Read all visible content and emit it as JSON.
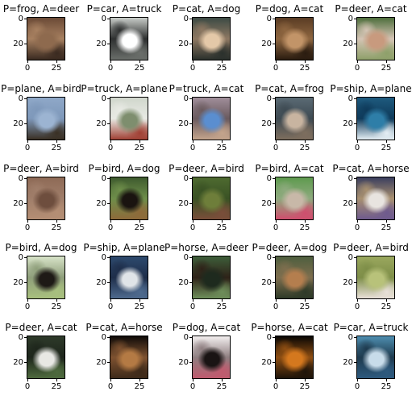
{
  "figure": {
    "columns": 5,
    "tick_labels": {
      "x": [
        "0",
        "25"
      ],
      "y": [
        "0",
        "20"
      ]
    },
    "panels": [
      {
        "title": "P=frog, A=deer",
        "scene": "deer-brown",
        "colors": [
          "#6b4a36",
          "#8e6a4e",
          "#3a2a20",
          "#a78060"
        ]
      },
      {
        "title": "P=car, A=truck",
        "scene": "truck-grey",
        "colors": [
          "#c8ccc8",
          "#ffffff",
          "#6a6e6a",
          "#2e3030"
        ]
      },
      {
        "title": "P=cat, A=dog",
        "scene": "dog-dark",
        "colors": [
          "#3c4a44",
          "#e4c8a8",
          "#2a302c",
          "#8e7862"
        ]
      },
      {
        "title": "P=dog, A=cat",
        "scene": "cat-brown",
        "colors": [
          "#5a3c24",
          "#c29468",
          "#2a1c10",
          "#8e6640"
        ]
      },
      {
        "title": "P=deer, A=cat",
        "scene": "cat-garden",
        "colors": [
          "#4e6e3c",
          "#c89a7e",
          "#8ea06a",
          "#d4c4b4"
        ]
      },
      {
        "title": "P=plane, A=bird",
        "scene": "bird-sky",
        "colors": [
          "#8fa8c8",
          "#9cb4d2",
          "#3a3024",
          "#7e98ba"
        ]
      },
      {
        "title": "P=truck, A=plane",
        "scene": "plane-ground",
        "colors": [
          "#d0d6cc",
          "#7e8e6e",
          "#a04034",
          "#e8eae4"
        ]
      },
      {
        "title": "P=truck, A=cat",
        "scene": "cat-screen",
        "colors": [
          "#a08e9a",
          "#5a8ed0",
          "#c4a48c",
          "#6a5a5e"
        ]
      },
      {
        "title": "P=cat, A=frog",
        "scene": "frog-rock",
        "colors": [
          "#5a6a74",
          "#c8b4a0",
          "#7e6e5e",
          "#3e4a52"
        ]
      },
      {
        "title": "P=ship, A=plane",
        "scene": "plane-water",
        "colors": [
          "#1e5a7e",
          "#2e7ea8",
          "#e4eef4",
          "#0e3a5a"
        ]
      },
      {
        "title": "P=deer, A=bird",
        "scene": "bird-brown",
        "colors": [
          "#8e6a56",
          "#6e4e3e",
          "#b48e74",
          "#a07e6a"
        ]
      },
      {
        "title": "P=bird, A=dog",
        "scene": "dog-black",
        "colors": [
          "#3e5a2e",
          "#1a1410",
          "#8e6a3a",
          "#6e8e4a"
        ]
      },
      {
        "title": "P=deer, A=bird",
        "scene": "bird-grass",
        "colors": [
          "#4e6a30",
          "#6e7e3a",
          "#7a4e3a",
          "#3a5224"
        ]
      },
      {
        "title": "P=bird, A=cat",
        "scene": "cat-flowers",
        "colors": [
          "#5e9a4e",
          "#c8b8a8",
          "#d04e6e",
          "#8eaa7e"
        ]
      },
      {
        "title": "P=cat, A=horse",
        "scene": "horse-white",
        "colors": [
          "#3a3e5e",
          "#e8e4e0",
          "#6e5a8e",
          "#a89070"
        ]
      },
      {
        "title": "P=bird, A=dog",
        "scene": "dog-field",
        "colors": [
          "#d8e4c8",
          "#1e1a16",
          "#a8c07e",
          "#8e9e7a"
        ]
      },
      {
        "title": "P=ship, A=plane",
        "scene": "plane-lake",
        "colors": [
          "#2e4a6e",
          "#e0e4e8",
          "#4e6a8e",
          "#1e2e4a"
        ]
      },
      {
        "title": "P=horse, A=deer",
        "scene": "deer-dark",
        "colors": [
          "#3e5e3a",
          "#1e2a1e",
          "#6e8e5a",
          "#2e2218"
        ]
      },
      {
        "title": "P=deer, A=dog",
        "scene": "dog-brown",
        "colors": [
          "#4e5e3e",
          "#b47e4e",
          "#2e3a28",
          "#7e6e4e"
        ]
      },
      {
        "title": "P=deer, A=bird",
        "scene": "bird-field",
        "colors": [
          "#9aa85e",
          "#b8c27a",
          "#e8e0d8",
          "#7e8e48"
        ]
      },
      {
        "title": "P=deer, A=cat",
        "scene": "cat-white",
        "colors": [
          "#2e3a2a",
          "#e8e8e4",
          "#4e6a3e",
          "#1e261c"
        ]
      },
      {
        "title": "P=cat, A=horse",
        "scene": "horse-night",
        "colors": [
          "#0e0a08",
          "#b47a44",
          "#3e2a1a",
          "#7e5230"
        ]
      },
      {
        "title": "P=dog, A=cat",
        "scene": "cat-bw",
        "colors": [
          "#f4f0f0",
          "#1a1414",
          "#c05a6e",
          "#8e7e80"
        ]
      },
      {
        "title": "P=horse, A=cat",
        "scene": "cat-eyes",
        "colors": [
          "#080604",
          "#d4781e",
          "#1e140a",
          "#8e4e12"
        ]
      },
      {
        "title": "P=car, A=truck",
        "scene": "truck-blue",
        "colors": [
          "#4e8eb0",
          "#c8dcea",
          "#2e5a7e",
          "#1e3a4e"
        ]
      }
    ]
  }
}
